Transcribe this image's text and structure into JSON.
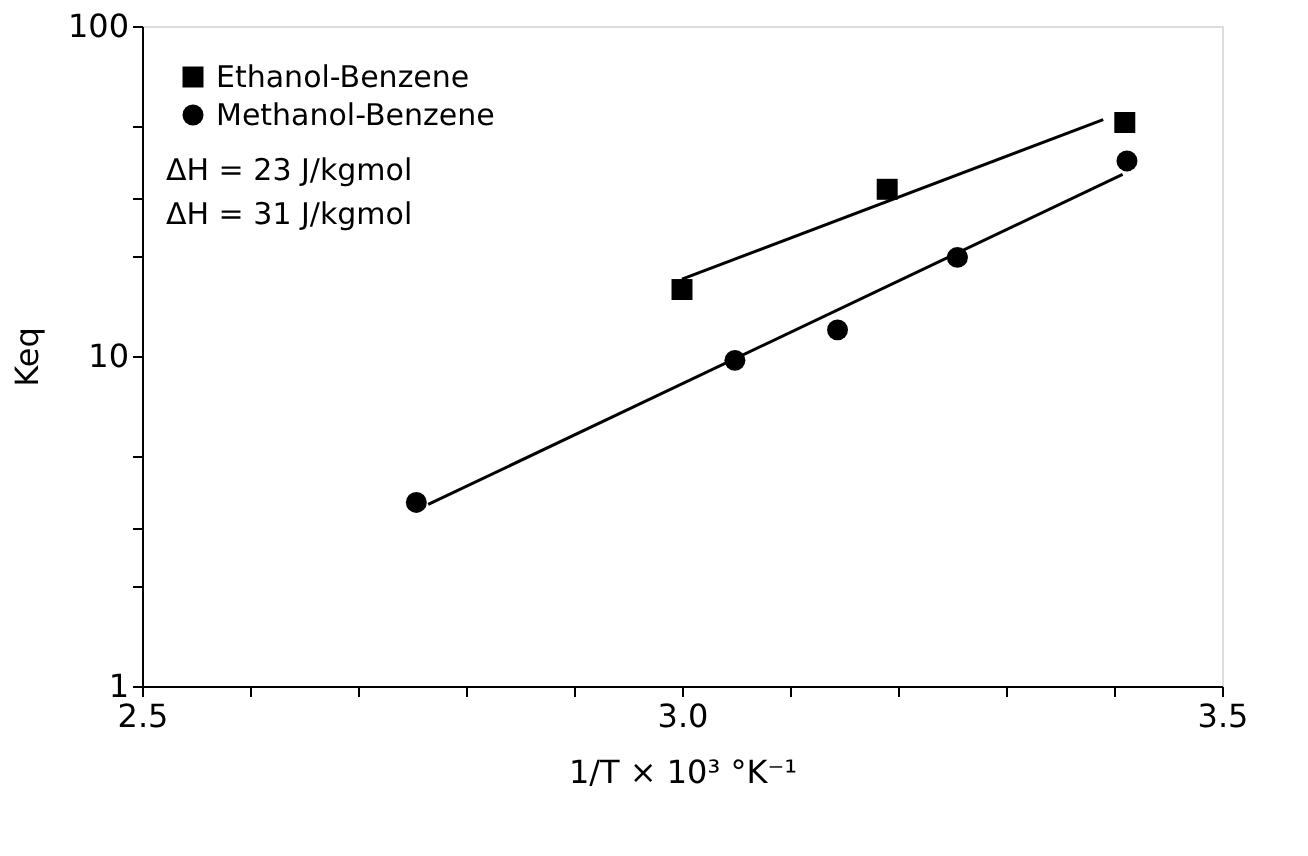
{
  "chart_data": {
    "type": "scatter",
    "xlabel": "1/T × 10³ °K⁻¹",
    "ylabel": "Keq",
    "log": "y",
    "xlim": [
      2.5,
      3.5
    ],
    "ylim": [
      1,
      100
    ],
    "xticks": [
      {
        "value": 2.5,
        "label": "2.5"
      },
      {
        "value": 2.6,
        "label": null
      },
      {
        "value": 2.7,
        "label": null
      },
      {
        "value": 2.8,
        "label": null
      },
      {
        "value": 2.9,
        "label": null
      },
      {
        "value": 3.0,
        "label": "3.0"
      },
      {
        "value": 3.1,
        "label": null
      },
      {
        "value": 3.2,
        "label": null
      },
      {
        "value": 3.3,
        "label": null
      },
      {
        "value": 3.4,
        "label": null
      },
      {
        "value": 3.5,
        "label": "3.5"
      }
    ],
    "yticks": [
      1,
      {
        "value": 2,
        "label": null
      },
      {
        "value": 3,
        "label": null
      },
      {
        "value": 5,
        "label": null
      },
      10,
      {
        "value": 20,
        "label": null
      },
      {
        "value": 30,
        "label": null
      },
      {
        "value": 50,
        "label": null
      },
      100
    ],
    "marker": "circle",
    "grid": false,
    "legend": "top left",
    "series": [
      {
        "name": "Ethanol-Benzene",
        "marker": "square",
        "color": "#000000",
        "x": [
          3.0,
          3.19,
          3.41
        ],
        "values": [
          15.9,
          32,
          51
        ]
      },
      {
        "name": "Methanol-Benzene",
        "color": "#000000",
        "x": [
          2.754,
          3.049,
          3.144,
          3.255,
          3.412
        ],
        "values": [
          3.6,
          9.7,
          12,
          19.9,
          39
        ]
      },
      {
        "type": "line",
        "marker": "none",
        "color": "#000000",
        "x": [
          3.0,
          3.39
        ],
        "values": [
          17.1,
          52
        ]
      },
      {
        "type": "line",
        "marker": "none",
        "color": "#000000",
        "x": [
          2.765,
          3.408
        ],
        "values": [
          3.55,
          35.5
        ]
      }
    ],
    "annotations": [
      "ΔH = 23 J/kgmol",
      "ΔH = 31 J/kgmol"
    ]
  }
}
